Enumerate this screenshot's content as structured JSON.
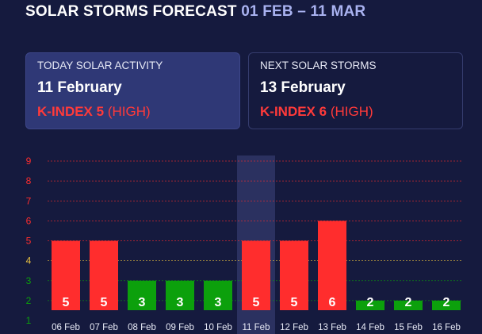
{
  "header": {
    "title": "SOLAR STORMS FORECAST",
    "range": "01 FEB – 11 MAR"
  },
  "cards": {
    "today": {
      "label": "TODAY SOLAR ACTIVITY",
      "date": "11 February",
      "kindex": "K-INDEX 5",
      "level": "(HIGH)"
    },
    "next": {
      "label": "NEXT SOLAR STORMS",
      "date": "13 February",
      "kindex": "K-INDEX 6",
      "level": "(HIGH)"
    }
  },
  "colors": {
    "background": "#151a3e",
    "high": "#ff2d2d",
    "low": "#0ca00c",
    "moderate": "#e8c040",
    "highlight": "#2b3160"
  },
  "chart_data": {
    "type": "bar",
    "title": "",
    "xlabel": "",
    "ylabel": "",
    "ylim": [
      1,
      9
    ],
    "yticks": [
      "1",
      "2",
      "3",
      "4",
      "5",
      "6",
      "7",
      "8",
      "9"
    ],
    "categories": [
      "06 Feb",
      "07 Feb",
      "08 Feb",
      "09 Feb",
      "10 Feb",
      "11 Feb",
      "12 Feb",
      "13 Feb",
      "14 Feb",
      "15 Feb",
      "16 Feb"
    ],
    "values": [
      5,
      5,
      3,
      3,
      3,
      5,
      5,
      6,
      2,
      2,
      2
    ],
    "value_labels": [
      "5",
      "5",
      "3",
      "3",
      "3",
      "5",
      "5",
      "6",
      "2",
      "2",
      "2"
    ],
    "highlighted_category": "11 Feb"
  }
}
